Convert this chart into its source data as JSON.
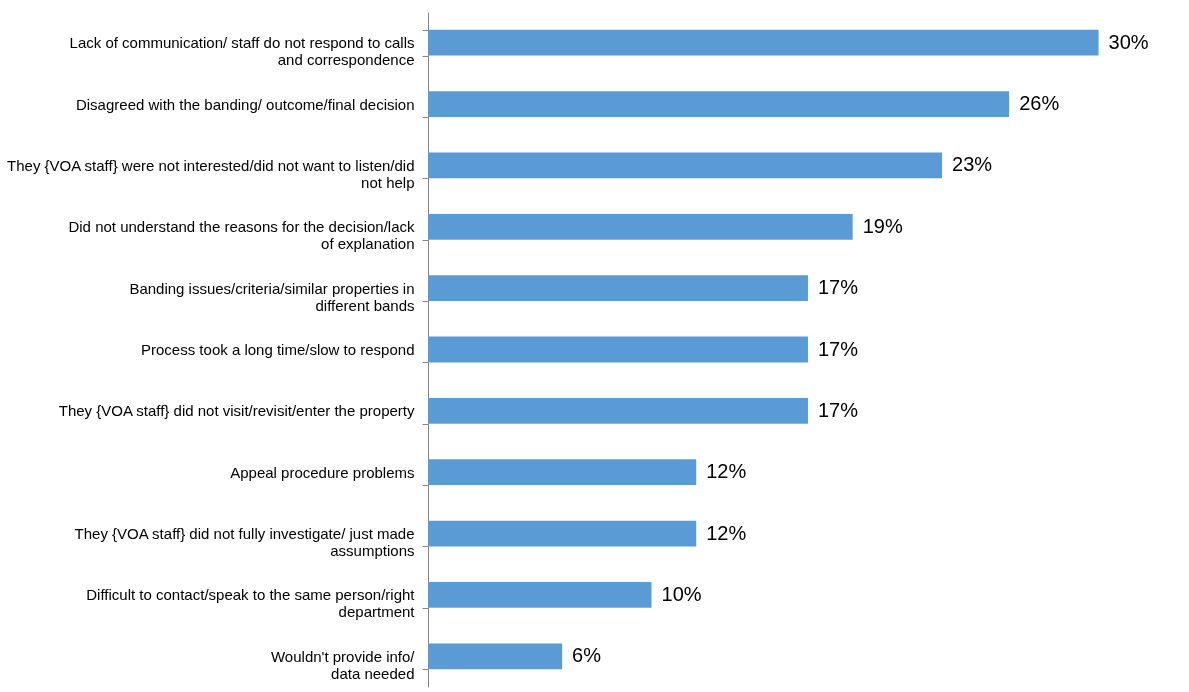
{
  "chart_data": {
    "type": "bar",
    "orientation": "horizontal",
    "color": "#5b9bd5",
    "categories": [
      "Lack of communication/ staff do not respond to calls\nand correspondence",
      "Disagreed with the banding/ outcome/final decision",
      "They {VOA staff} were not interested/did not want to listen/did\nnot help",
      "Did not understand the reasons for the decision/lack\nof explanation",
      "Banding issues/criteria/similar properties in\ndifferent bands",
      "Process took a long time/slow to respond",
      "They {VOA staff} did not visit/revisit/enter the property",
      "Appeal procedure problems",
      "They {VOA staff} did not fully investigate/ just made\nassumptions",
      "Difficult to contact/speak to the same person/right\ndepartment",
      "Wouldn't provide info/\ndata needed"
    ],
    "values": [
      30,
      26,
      23,
      19,
      17,
      17,
      17,
      12,
      12,
      10,
      6
    ],
    "value_labels": [
      "30%",
      "26%",
      "23%",
      "19%",
      "17%",
      "17%",
      "17%",
      "12%",
      "12%",
      "10%",
      "6%"
    ],
    "grid": false
  }
}
